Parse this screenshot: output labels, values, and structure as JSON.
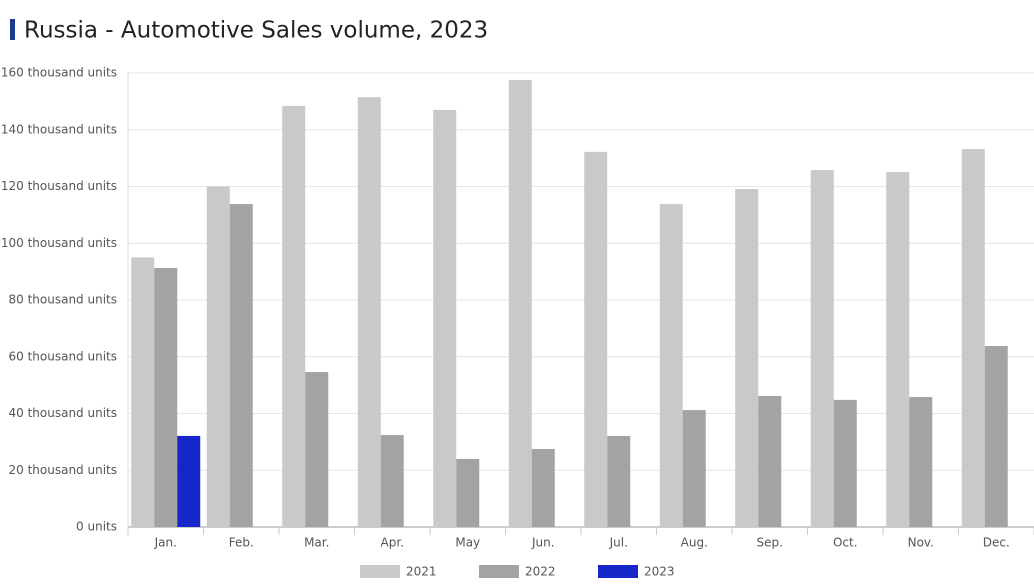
{
  "chart_data": {
    "type": "bar",
    "title": "Russia - Automotive Sales volume, 2023",
    "categories": [
      "Jan.",
      "Feb.",
      "Mar.",
      "Apr.",
      "May",
      "Jun.",
      "Jul.",
      "Aug.",
      "Sep.",
      "Oct.",
      "Nov.",
      "Dec."
    ],
    "series": [
      {
        "name": "2021",
        "color": "#c9c9c9",
        "values": [
          95,
          120,
          148.4,
          151.5,
          147,
          157.5,
          132.2,
          113.8,
          119.1,
          125.8,
          125.1,
          133.2
        ]
      },
      {
        "name": "2022",
        "color": "#a3a3a3",
        "values": [
          91.3,
          113.8,
          54.6,
          32.4,
          24,
          27.5,
          32.1,
          41.2,
          46.2,
          44.8,
          45.8,
          63.8
        ]
      },
      {
        "name": "2023",
        "color": "#1527c9",
        "values": [
          32.1,
          null,
          null,
          null,
          null,
          null,
          null,
          null,
          null,
          null,
          null,
          null
        ]
      }
    ],
    "ylim": [
      0,
      160
    ],
    "yticks": [
      {
        "value": 0,
        "label": "0 units"
      },
      {
        "value": 20,
        "label": "20 thousand units"
      },
      {
        "value": 40,
        "label": "40 thousand units"
      },
      {
        "value": 60,
        "label": "60 thousand units"
      },
      {
        "value": 80,
        "label": "80 thousand units"
      },
      {
        "value": 100,
        "label": "100 thousand units"
      },
      {
        "value": 120,
        "label": "120 thousand units"
      },
      {
        "value": 140,
        "label": "140 thousand units"
      },
      {
        "value": 160,
        "label": "160 thousand units"
      }
    ],
    "grid": true
  }
}
